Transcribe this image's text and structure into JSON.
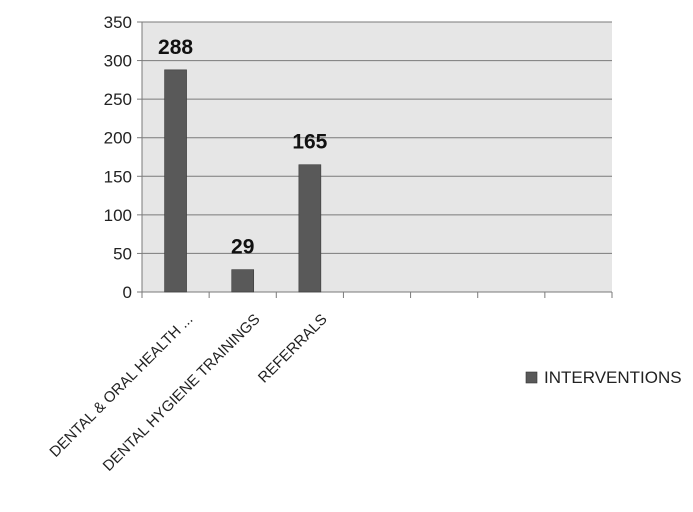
{
  "chart_data": {
    "type": "bar",
    "categories": [
      "DENTAL & ORAL HEALTH ...",
      "DENTAL HYGIENE TRAININGS",
      "REFERRALS",
      "",
      "",
      "",
      ""
    ],
    "series": [
      {
        "name": "INTERVENTIONS",
        "values": [
          288,
          29,
          165,
          null,
          null,
          null,
          null
        ],
        "color": "#595959"
      }
    ],
    "data_labels": [
      "288",
      "29",
      "165"
    ],
    "ylim": [
      0,
      350
    ],
    "yticks": [
      0,
      50,
      100,
      150,
      200,
      250,
      300,
      350
    ],
    "ytick_labels": [
      "0",
      "50",
      "100",
      "150",
      "200",
      "250",
      "300",
      "350"
    ],
    "grid": true,
    "plot_background": "#e6e6e6",
    "legend_position": "right"
  }
}
